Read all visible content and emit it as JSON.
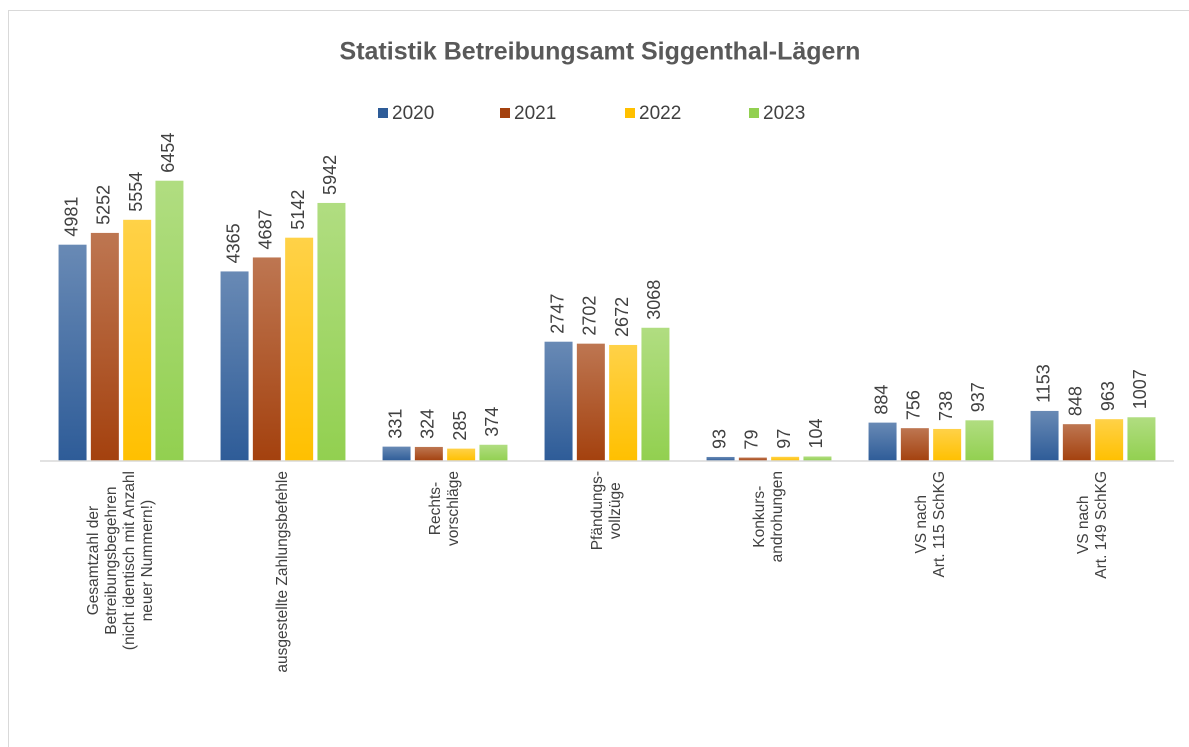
{
  "chart_data": {
    "type": "bar",
    "title": "Statistik Betreibungsamt Siggenthal-Lägern",
    "categories": [
      "Gesamtzahl der\nBetreibungsbegehren\n(nicht identisch mit Anzahl\nneuer Nummern!)",
      "ausgestellte Zahlungsbefehle",
      "Rechts-\nvorschläge",
      "Pfändungs-\nvollzüge",
      "Konkurs-\nandrohungen",
      "VS nach\nArt. 115 SchKG",
      "VS nach\nArt. 149 SchKG"
    ],
    "series": [
      {
        "name": "2020",
        "color": "#2e5c98",
        "values": [
          4981,
          4365,
          331,
          2747,
          93,
          884,
          1153
        ]
      },
      {
        "name": "2021",
        "color": "#a4410e",
        "values": [
          5252,
          4687,
          324,
          2702,
          79,
          756,
          848
        ]
      },
      {
        "name": "2022",
        "color": "#ffc000",
        "values": [
          5554,
          5142,
          285,
          2672,
          97,
          738,
          963
        ]
      },
      {
        "name": "2023",
        "color": "#92d050",
        "values": [
          6454,
          5942,
          374,
          3068,
          104,
          937,
          1007
        ]
      }
    ],
    "ylim": [
      0,
      7000
    ],
    "legend": "top"
  }
}
